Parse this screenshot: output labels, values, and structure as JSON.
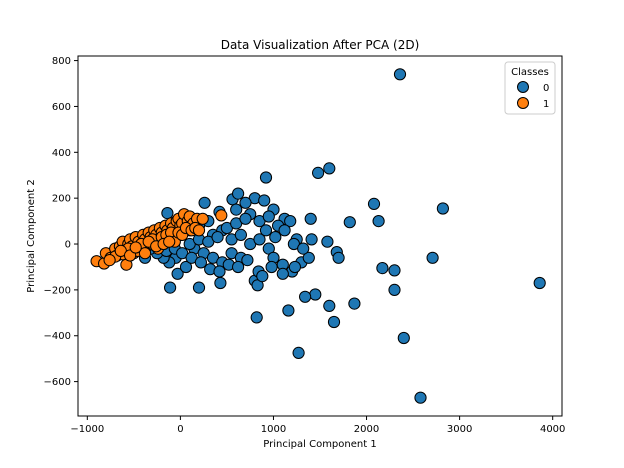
{
  "chart_data": {
    "type": "scatter",
    "title": "Data Visualization After PCA (2D)",
    "xlabel": "Principal Component 1",
    "ylabel": "Principal Component 2",
    "xlim": [
      -1100,
      4100
    ],
    "ylim": [
      -750,
      820
    ],
    "xticks": [
      -1000,
      0,
      1000,
      2000,
      3000,
      4000
    ],
    "yticks": [
      -600,
      -400,
      -200,
      0,
      200,
      400,
      600,
      800
    ],
    "grid": false,
    "legend": {
      "title": "Classes",
      "placement": "top-right"
    },
    "series": [
      {
        "name": "0",
        "color": "#1f77b4",
        "points": [
          [
            2360,
            740
          ],
          [
            1600,
            330
          ],
          [
            1480,
            310
          ],
          [
            920,
            290
          ],
          [
            2080,
            175
          ],
          [
            2820,
            155
          ],
          [
            2130,
            100
          ],
          [
            1820,
            95
          ],
          [
            560,
            195
          ],
          [
            800,
            200
          ],
          [
            620,
            220
          ],
          [
            700,
            180
          ],
          [
            900,
            190
          ],
          [
            260,
            180
          ],
          [
            -140,
            135
          ],
          [
            420,
            140
          ],
          [
            1000,
            150
          ],
          [
            1120,
            110
          ],
          [
            1400,
            110
          ],
          [
            1180,
            100
          ],
          [
            600,
            150
          ],
          [
            750,
            130
          ],
          [
            850,
            100
          ],
          [
            950,
            120
          ],
          [
            1050,
            80
          ],
          [
            1250,
            20
          ],
          [
            300,
            100
          ],
          [
            200,
            80
          ],
          [
            100,
            60
          ],
          [
            0,
            40
          ],
          [
            -100,
            20
          ],
          [
            -200,
            -10
          ],
          [
            350,
            40
          ],
          [
            450,
            60
          ],
          [
            550,
            20
          ],
          [
            650,
            40
          ],
          [
            750,
            0
          ],
          [
            850,
            20
          ],
          [
            950,
            -20
          ],
          [
            150,
            -20
          ],
          [
            250,
            -40
          ],
          [
            350,
            -60
          ],
          [
            450,
            -80
          ],
          [
            550,
            -40
          ],
          [
            650,
            -60
          ],
          [
            -50,
            -60
          ],
          [
            -120,
            -80
          ],
          [
            -180,
            -60
          ],
          [
            -250,
            -40
          ],
          [
            -320,
            -20
          ],
          [
            -380,
            -60
          ],
          [
            1000,
            -60
          ],
          [
            1100,
            -90
          ],
          [
            1200,
            -120
          ],
          [
            1300,
            -80
          ],
          [
            1380,
            -60
          ],
          [
            1410,
            20
          ],
          [
            1680,
            -35
          ],
          [
            1700,
            -60
          ],
          [
            1580,
            10
          ],
          [
            2170,
            -105
          ],
          [
            2300,
            -115
          ],
          [
            2710,
            -60
          ],
          [
            430,
            -170
          ],
          [
            200,
            -190
          ],
          [
            -110,
            -190
          ],
          [
            -30,
            -130
          ],
          [
            60,
            -100
          ],
          [
            800,
            -160
          ],
          [
            830,
            -180
          ],
          [
            840,
            -120
          ],
          [
            1100,
            -130
          ],
          [
            1230,
            -100
          ],
          [
            1450,
            -220
          ],
          [
            1340,
            -230
          ],
          [
            1870,
            -260
          ],
          [
            2300,
            -200
          ],
          [
            1600,
            -270
          ],
          [
            1160,
            -290
          ],
          [
            820,
            -320
          ],
          [
            1650,
            -340
          ],
          [
            2400,
            -410
          ],
          [
            1270,
            -475
          ],
          [
            2580,
            -670
          ],
          [
            3860,
            -170
          ],
          [
            100,
            0
          ],
          [
            200,
            20
          ],
          [
            300,
            10
          ],
          [
            400,
            30
          ],
          [
            500,
            70
          ],
          [
            600,
            90
          ],
          [
            700,
            110
          ],
          [
            -300,
            10
          ],
          [
            -250,
            0
          ],
          [
            -150,
            -30
          ],
          [
            -60,
            -20
          ],
          [
            20,
            -40
          ],
          [
            120,
            -60
          ],
          [
            220,
            -80
          ],
          [
            320,
            -110
          ],
          [
            420,
            -120
          ],
          [
            520,
            -90
          ],
          [
            620,
            -100
          ],
          [
            720,
            -70
          ],
          [
            920,
            60
          ],
          [
            1020,
            30
          ],
          [
            1120,
            60
          ],
          [
            1220,
            0
          ],
          [
            1320,
            -20
          ],
          [
            980,
            -100
          ],
          [
            880,
            -140
          ]
        ]
      },
      {
        "name": "1",
        "color": "#ff7f0e",
        "points": [
          [
            -900,
            -75
          ],
          [
            -820,
            -85
          ],
          [
            -800,
            -40
          ],
          [
            -750,
            -60
          ],
          [
            -700,
            -20
          ],
          [
            -680,
            -50
          ],
          [
            -650,
            -10
          ],
          [
            -620,
            10
          ],
          [
            -600,
            -30
          ],
          [
            -580,
            -90
          ],
          [
            -560,
            0
          ],
          [
            -540,
            20
          ],
          [
            -520,
            -10
          ],
          [
            -500,
            -40
          ],
          [
            -480,
            30
          ],
          [
            -450,
            10
          ],
          [
            -430,
            -20
          ],
          [
            -400,
            40
          ],
          [
            -380,
            20
          ],
          [
            -360,
            -10
          ],
          [
            -340,
            50
          ],
          [
            -320,
            30
          ],
          [
            -300,
            0
          ],
          [
            -280,
            60
          ],
          [
            -260,
            40
          ],
          [
            -240,
            10
          ],
          [
            -220,
            70
          ],
          [
            -200,
            50
          ],
          [
            -180,
            20
          ],
          [
            -160,
            80
          ],
          [
            -140,
            60
          ],
          [
            -120,
            30
          ],
          [
            -100,
            90
          ],
          [
            -80,
            70
          ],
          [
            -60,
            40
          ],
          [
            -40,
            100
          ],
          [
            -20,
            110
          ],
          [
            0,
            80
          ],
          [
            20,
            90
          ],
          [
            40,
            130
          ],
          [
            80,
            100
          ],
          [
            100,
            120
          ],
          [
            140,
            90
          ],
          [
            180,
            110
          ],
          [
            240,
            110
          ],
          [
            440,
            125
          ],
          [
            -620,
            -45
          ],
          [
            -700,
            -55
          ],
          [
            -560,
            -20
          ],
          [
            -460,
            -30
          ],
          [
            -420,
            0
          ],
          [
            -380,
            -40
          ],
          [
            -300,
            20
          ],
          [
            -240,
            -20
          ],
          [
            -200,
            30
          ],
          [
            -150,
            40
          ],
          [
            -100,
            50
          ],
          [
            -60,
            10
          ],
          [
            -20,
            50
          ],
          [
            20,
            40
          ],
          [
            60,
            70
          ],
          [
            120,
            60
          ],
          [
            160,
            70
          ],
          [
            200,
            60
          ],
          [
            -760,
            -70
          ],
          [
            -640,
            -30
          ],
          [
            -540,
            -50
          ],
          [
            -480,
            -15
          ],
          [
            -340,
            10
          ],
          [
            -260,
            -10
          ],
          [
            -180,
            0
          ],
          [
            -120,
            10
          ]
        ]
      }
    ]
  },
  "legend": {
    "title": "Classes",
    "items": [
      "0",
      "1"
    ]
  }
}
